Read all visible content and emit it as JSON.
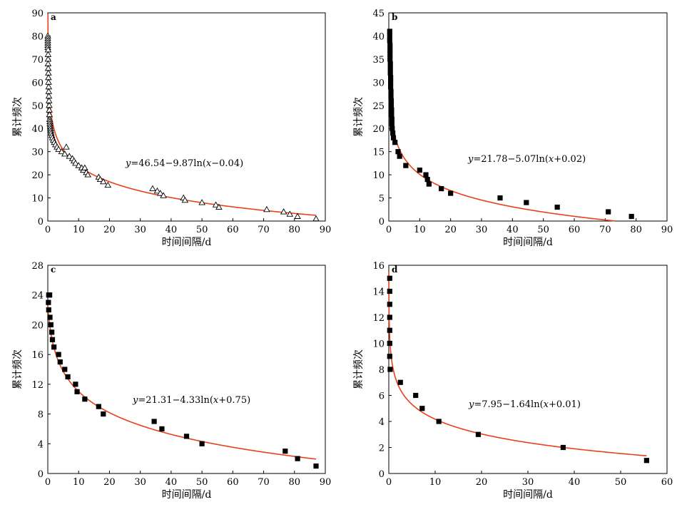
{
  "chart_data": [
    {
      "type": "scatter",
      "panel": "a",
      "marker": "triangle",
      "xlabel": "时间间隔/d",
      "ylabel": "累计频次",
      "xlim": [
        0,
        90
      ],
      "ylim": [
        0,
        90
      ],
      "xticks": [
        0,
        10,
        20,
        30,
        40,
        50,
        60,
        70,
        80,
        90
      ],
      "yticks": [
        0,
        10,
        20,
        30,
        40,
        50,
        60,
        70,
        80,
        90
      ],
      "equation": "y=46.54−9.87ln(x−0.04)",
      "fit": {
        "a": 46.54,
        "b": -9.87,
        "c": -0.04,
        "color": "#e8401c"
      },
      "points": {
        "x": [
          0,
          0,
          0,
          0,
          0,
          0,
          0.1,
          0.1,
          0.1,
          0.1,
          0.15,
          0.2,
          0.2,
          0.25,
          0.3,
          0.3,
          0.35,
          0.4,
          0.45,
          0.5,
          0.55,
          0.6,
          0.65,
          0.7,
          0.8,
          0.9,
          1.0,
          1.1,
          1.3,
          1.5,
          1.8,
          2.1,
          2.5,
          3,
          3.5,
          4.5,
          5.5,
          6,
          7,
          8,
          8.5,
          9,
          10,
          11,
          11.5,
          12,
          12.5,
          13,
          16.5,
          17,
          18,
          19.5,
          34,
          35.5,
          36.5,
          37.5,
          44,
          44.5,
          50,
          54.5,
          55.5,
          71,
          76.5,
          78.5,
          81,
          87
        ],
        "y": [
          80,
          79,
          78,
          77,
          76,
          75,
          74,
          72,
          70,
          68,
          66,
          64,
          62,
          60,
          58,
          56,
          54,
          52,
          50,
          48,
          46,
          44,
          43,
          42,
          41,
          40,
          39,
          38,
          37,
          36,
          35,
          34,
          33,
          32,
          31,
          30,
          29,
          32,
          28,
          27,
          26,
          25,
          24,
          23,
          22,
          23,
          21,
          20,
          19,
          18,
          17,
          15.5,
          14,
          13,
          12,
          11,
          10,
          9,
          8,
          7,
          6,
          5,
          4,
          3,
          2,
          1
        ]
      }
    },
    {
      "type": "scatter",
      "panel": "b",
      "marker": "square",
      "xlabel": "时间间隔/d",
      "ylabel": "累计频次",
      "xlim": [
        0,
        90
      ],
      "ylim": [
        0,
        45
      ],
      "xticks": [
        0,
        10,
        20,
        30,
        40,
        50,
        60,
        70,
        80,
        90
      ],
      "yticks": [
        0,
        5,
        10,
        15,
        20,
        25,
        30,
        35,
        40,
        45
      ],
      "equation": "y=21.78−5.07ln(x+0.02)",
      "fit": {
        "a": 21.78,
        "b": -5.07,
        "c": 0.02,
        "color": "#e8401c"
      },
      "points": {
        "x": [
          0.3,
          0.3,
          0.3,
          0.4,
          0.4,
          0.4,
          0.4,
          0.5,
          0.5,
          0.5,
          0.6,
          0.6,
          0.6,
          0.7,
          0.7,
          0.8,
          0.8,
          0.9,
          0.9,
          1.0,
          1.0,
          1.1,
          1.3,
          1.5,
          2,
          3,
          3.5,
          5.5,
          10,
          12,
          12.5,
          13,
          17,
          20,
          36,
          44.5,
          54.5,
          71,
          78.5
        ],
        "y": [
          41,
          40,
          39,
          38,
          37,
          36,
          35,
          34,
          33,
          32,
          31,
          30,
          29,
          28,
          27,
          26,
          25,
          24,
          23,
          22,
          21,
          20,
          19,
          18,
          17,
          15,
          14,
          12,
          11,
          10,
          9,
          8,
          7,
          6,
          5,
          4,
          3,
          2,
          1
        ]
      }
    },
    {
      "type": "scatter",
      "panel": "c",
      "marker": "square",
      "xlabel": "时间间隔/d",
      "ylabel": "累计频次",
      "xlim": [
        0,
        90
      ],
      "ylim": [
        0,
        28
      ],
      "xticks": [
        0,
        10,
        20,
        30,
        40,
        50,
        60,
        70,
        80,
        90
      ],
      "yticks": [
        0,
        4,
        8,
        12,
        16,
        20,
        24,
        28
      ],
      "equation": "y=21.31−4.33ln(x+0.75)",
      "fit": {
        "a": 21.31,
        "b": -4.33,
        "c": 0.75,
        "color": "#e8401c"
      },
      "points": {
        "x": [
          0.3,
          0.6,
          0.2,
          0.3,
          0.7,
          1.0,
          1.3,
          1.5,
          2,
          3.5,
          4,
          5.5,
          6.5,
          9,
          9.5,
          12,
          16.5,
          18,
          34.5,
          37,
          45,
          50,
          77,
          81,
          87
        ],
        "y": [
          24,
          24,
          23,
          22,
          21,
          20,
          19,
          18,
          17,
          16,
          15,
          14,
          13,
          12,
          11,
          10,
          9,
          8,
          7,
          6,
          5,
          4,
          3,
          2,
          1
        ]
      }
    },
    {
      "type": "scatter",
      "panel": "d",
      "marker": "square",
      "xlabel": "时间间隔/d",
      "ylabel": "累计频次",
      "xlim": [
        0,
        60
      ],
      "ylim": [
        0,
        16
      ],
      "xticks": [
        0,
        10,
        20,
        30,
        40,
        50,
        60
      ],
      "yticks": [
        0,
        2,
        4,
        6,
        8,
        10,
        12,
        14,
        16
      ],
      "equation": "y=7.95−1.64ln(x+0.01)",
      "fit": {
        "a": 7.95,
        "b": -1.64,
        "c": 0.01,
        "color": "#e8401c"
      },
      "points": {
        "x": [
          0.2,
          0.2,
          0.2,
          0.2,
          0.2,
          0.2,
          0.2,
          0.3,
          2.5,
          5.8,
          7.2,
          10.8,
          19.3,
          37.6,
          55.6
        ],
        "y": [
          15,
          14,
          13,
          12,
          11,
          10,
          9,
          8,
          7,
          6,
          5,
          4,
          3,
          2,
          1
        ]
      }
    }
  ]
}
